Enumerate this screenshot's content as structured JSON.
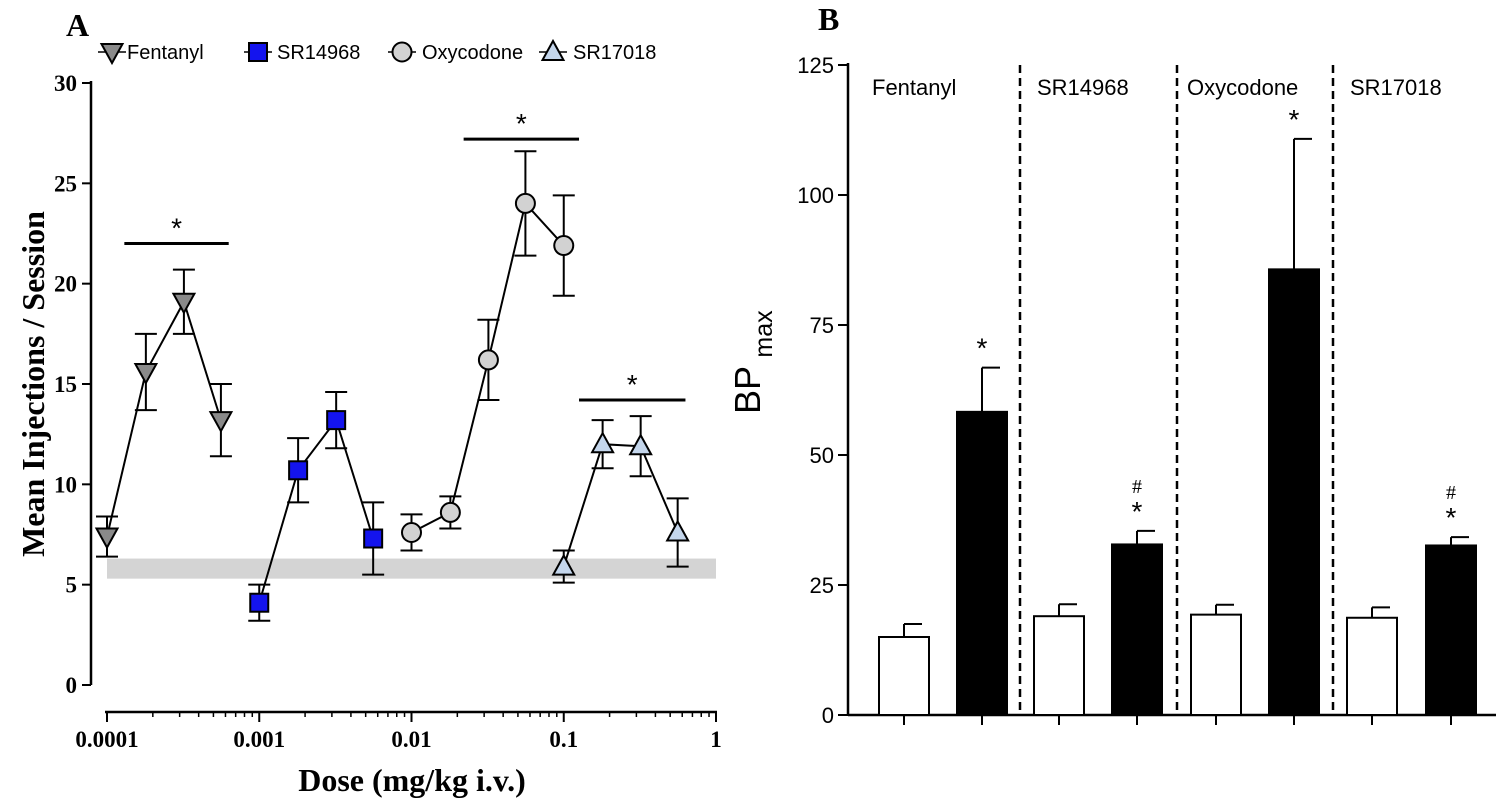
{
  "chart_data": [
    {
      "panel": "A",
      "type": "line",
      "xscale": "log",
      "xlim": [
        0.0001,
        1
      ],
      "ylim": [
        0,
        30
      ],
      "xlabel": "Dose (mg/kg i.v.)",
      "ylabel": "Mean Injections / Session",
      "xticks": [
        0.0001,
        0.001,
        0.01,
        0.1,
        1
      ],
      "xtick_labels": [
        "0.0001",
        "0.001",
        "0.01",
        "0.1",
        "1"
      ],
      "yticks": [
        0,
        5,
        10,
        15,
        20,
        25,
        30
      ],
      "ytick_labels": [
        "0",
        "5",
        "10",
        "15",
        "20",
        "25",
        "30"
      ],
      "baseline_band": [
        5.3,
        6.3
      ],
      "series": [
        {
          "name": "Fentanyl",
          "marker": "triangle-down",
          "color": "#8a8a8a",
          "x": [
            0.0001,
            0.00018,
            0.00032,
            0.00056
          ],
          "y": [
            7.4,
            15.6,
            19.1,
            13.2
          ],
          "err": [
            1.0,
            1.9,
            1.6,
            1.8
          ]
        },
        {
          "name": "SR14968",
          "marker": "square",
          "color": "#1414ee",
          "x": [
            0.001,
            0.0018,
            0.0032,
            0.0056
          ],
          "y": [
            4.1,
            10.7,
            13.2,
            7.3
          ],
          "err": [
            0.9,
            1.6,
            1.4,
            1.8
          ]
        },
        {
          "name": "Oxycodone",
          "marker": "circle",
          "color": "#d2d2d2",
          "x": [
            0.01,
            0.018,
            0.032,
            0.056,
            0.1
          ],
          "y": [
            7.6,
            8.6,
            16.2,
            24.0,
            21.9
          ],
          "err": [
            0.9,
            0.8,
            2.0,
            2.6,
            2.5
          ]
        },
        {
          "name": "SR17018",
          "marker": "triangle-up",
          "color": "#c4d6ec",
          "x": [
            0.1,
            0.18,
            0.32,
            0.56
          ],
          "y": [
            5.9,
            12.0,
            11.9,
            7.6
          ],
          "err": [
            0.8,
            1.2,
            1.5,
            1.7
          ]
        }
      ],
      "significance": [
        {
          "label": "*",
          "x_from": 0.00013,
          "x_to": 0.00063,
          "y": 22
        },
        {
          "label": "*",
          "x_from": 0.022,
          "x_to": 0.126,
          "y": 27.2
        },
        {
          "label": "*",
          "x_from": 0.126,
          "x_to": 0.63,
          "y": 14.2
        }
      ]
    },
    {
      "panel": "B",
      "type": "bar",
      "ylim": [
        0,
        125
      ],
      "yticks": [
        0,
        25,
        50,
        75,
        100,
        125
      ],
      "ytick_labels": [
        "0",
        "25",
        "50",
        "75",
        "100",
        "125"
      ],
      "ylabel": "BP",
      "ylabel_sub": "max",
      "groups": [
        "Fentanyl",
        "SR14968",
        "Oxycodone",
        "SR17018"
      ],
      "bars": [
        {
          "group": "Fentanyl",
          "fill": "white",
          "value": 15,
          "err": 2.5,
          "marks": []
        },
        {
          "group": "Fentanyl",
          "fill": "black",
          "value": 58.3,
          "err": 8.5,
          "marks": [
            "*"
          ]
        },
        {
          "group": "SR14968",
          "fill": "white",
          "value": 19,
          "err": 2.3,
          "marks": []
        },
        {
          "group": "SR14968",
          "fill": "black",
          "value": 32.8,
          "err": 2.6,
          "marks": [
            "*",
            "#"
          ]
        },
        {
          "group": "Oxycodone",
          "fill": "white",
          "value": 19.3,
          "err": 1.9,
          "marks": []
        },
        {
          "group": "Oxycodone",
          "fill": "black",
          "value": 85.7,
          "err": 25.1,
          "marks": [
            "*"
          ]
        },
        {
          "group": "SR17018",
          "fill": "white",
          "value": 18.7,
          "err": 2.0,
          "marks": []
        },
        {
          "group": "SR17018",
          "fill": "black",
          "value": 32.6,
          "err": 1.6,
          "marks": [
            "*",
            "#"
          ]
        }
      ]
    }
  ]
}
